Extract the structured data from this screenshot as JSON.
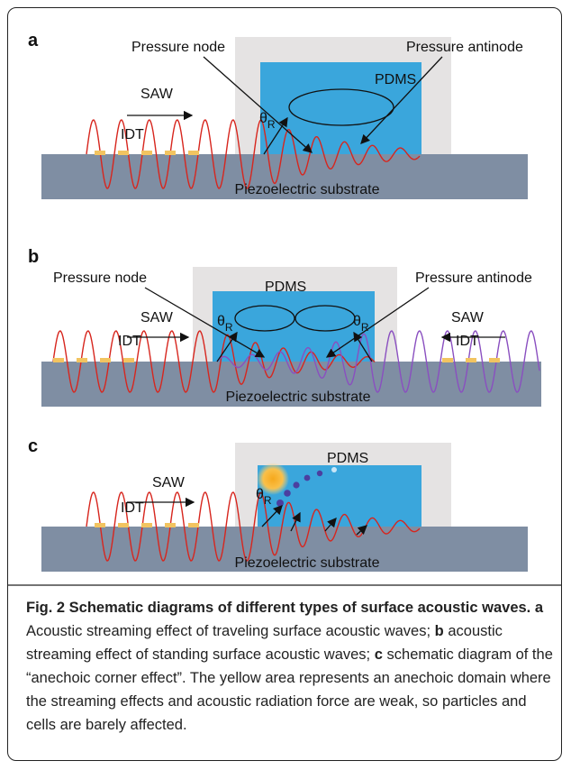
{
  "panels": [
    {
      "label": "a",
      "pressure_node": "Pressure node",
      "pressure_antinode": "Pressure antinode",
      "pdms": "PDMS",
      "saw": "SAW",
      "idt": "IDT",
      "theta": "θ",
      "theta_sub": "R",
      "substrate": "Piezoelectric substrate"
    },
    {
      "label": "b",
      "pressure_node": "Pressure node",
      "pressure_antinode": "Pressure antinode",
      "pdms": "PDMS",
      "saw_left": "SAW",
      "saw_right": "SAW",
      "idt_left": "IDT",
      "idt_right": "IDT",
      "theta_left": "θ",
      "theta_left_sub": "R",
      "theta_right": "θ",
      "theta_right_sub": "R",
      "substrate": "Piezoelectric substrate"
    },
    {
      "label": "c",
      "pdms": "PDMS",
      "saw": "SAW",
      "idt": "IDT",
      "theta": "θ",
      "theta_sub": "R",
      "substrate": "Piezoelectric substrate"
    }
  ],
  "caption": {
    "title": "Fig. 2 Schematic diagrams of different types of surface acoustic waves.",
    "a_label": "a",
    "a_text": "Acoustic streaming effect of traveling surface acoustic waves;",
    "b_label": "b",
    "b_text": "acoustic streaming effect of standing surface acoustic waves;",
    "c_label": "c",
    "c_text": "schematic diagram of the “anechoic corner effect”. The yellow area represents an anechoic domain where the streaming effects and acoustic radiation force are weak, so particles and cells are barely affected."
  }
}
